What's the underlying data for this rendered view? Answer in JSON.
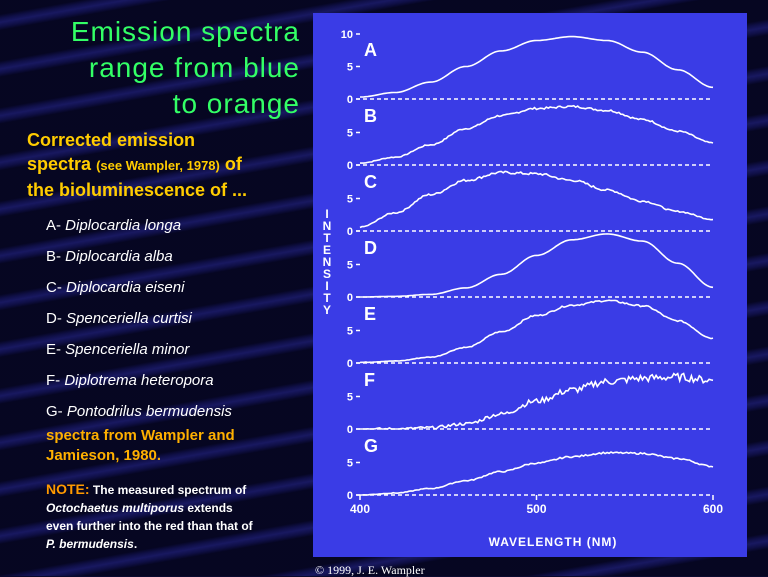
{
  "slide": {
    "title_lines": [
      "Emission spectra",
      "range from blue",
      "to orange"
    ],
    "subtitle_a": "Corrected emission",
    "subtitle_b": "spectra",
    "subtitle_ref": "(see Wampler, 1978)",
    "subtitle_c": "of",
    "subtitle_d": "the bioluminescence of ...",
    "species": [
      {
        "letter": "A-",
        "name": "Diplocardia longa"
      },
      {
        "letter": "B-",
        "name": "Diplocardia alba"
      },
      {
        "letter": "C-",
        "name": "Diplocardia eiseni"
      },
      {
        "letter": "D-",
        "name": "Spenceriella curtisi"
      },
      {
        "letter": "E-",
        "name": "Spenceriella minor"
      },
      {
        "letter": "F-",
        "name": "Diplotrema heteropora"
      },
      {
        "letter": "G-",
        "name": "Pontodrilus bermudensis"
      }
    ],
    "source_line1": "spectra from Wampler and",
    "source_line2": "Jamieson, 1980.",
    "note_lead": "NOTE:",
    "note_text1": "The measured spectrum of",
    "note_italic1": "Octochaetus multiporus",
    "note_text2": "extends",
    "note_text3": "even further into the red than that of",
    "note_italic2": "P. bermudensis",
    "note_end": ".",
    "copyright": "© 1999, J. E. Wampler"
  },
  "chart_data": {
    "type": "line",
    "xlabel": "WAVELENGTH (NM)",
    "ylabel": "INTENSITY",
    "xlim": [
      400,
      600
    ],
    "x_ticks": [
      "400",
      "500",
      "600"
    ],
    "ylim": [
      0,
      10
    ],
    "y_ticks": [
      "0",
      "5",
      "10"
    ],
    "y_tick_labels_top_panel": [
      "0",
      "5",
      "10"
    ],
    "y_tick_labels_other_panels": [
      "0",
      "5"
    ],
    "colors": {
      "line": "#ffffff",
      "background": "#3a3ce6"
    },
    "series": [
      {
        "name": "A",
        "x": [
          400,
          420,
          440,
          460,
          480,
          500,
          520,
          540,
          560,
          580,
          600
        ],
        "values": [
          0.3,
          1.0,
          2.6,
          5.0,
          7.4,
          9.0,
          9.6,
          9.0,
          7.2,
          4.5,
          1.8
        ],
        "noise": 0
      },
      {
        "name": "B",
        "x": [
          400,
          420,
          440,
          460,
          480,
          500,
          520,
          540,
          560,
          580,
          600
        ],
        "values": [
          0.3,
          1.2,
          3.1,
          5.6,
          7.6,
          8.7,
          9.0,
          8.4,
          7.0,
          5.2,
          3.4
        ],
        "noise": 0.25
      },
      {
        "name": "C",
        "x": [
          400,
          420,
          440,
          460,
          480,
          500,
          520,
          540,
          560,
          580,
          600
        ],
        "values": [
          0.6,
          2.8,
          5.6,
          7.8,
          9.0,
          8.8,
          7.8,
          6.3,
          4.6,
          3.0,
          1.8
        ],
        "noise": 0.3
      },
      {
        "name": "D",
        "x": [
          400,
          420,
          440,
          460,
          480,
          500,
          520,
          540,
          560,
          580,
          600
        ],
        "values": [
          0.0,
          0.1,
          0.4,
          1.4,
          3.5,
          6.4,
          8.8,
          9.7,
          8.6,
          5.2,
          1.5
        ],
        "noise": 0
      },
      {
        "name": "E",
        "x": [
          400,
          420,
          440,
          460,
          480,
          500,
          520,
          540,
          560,
          580,
          600
        ],
        "values": [
          0.1,
          0.3,
          0.9,
          2.4,
          4.8,
          7.3,
          8.9,
          9.6,
          8.8,
          6.5,
          3.8
        ],
        "noise": 0.2
      },
      {
        "name": "F",
        "x": [
          400,
          420,
          440,
          460,
          480,
          500,
          520,
          540,
          560,
          580,
          600
        ],
        "values": [
          0.0,
          0.0,
          0.2,
          0.8,
          2.3,
          4.3,
          6.0,
          7.3,
          7.8,
          8.0,
          7.5
        ],
        "noise": 1.0
      },
      {
        "name": "G",
        "x": [
          400,
          420,
          440,
          460,
          480,
          500,
          520,
          540,
          560,
          580,
          600
        ],
        "values": [
          0.0,
          0.3,
          1.0,
          2.2,
          3.6,
          4.9,
          5.9,
          6.5,
          6.4,
          5.6,
          4.4
        ],
        "noise": 0.25
      }
    ]
  }
}
